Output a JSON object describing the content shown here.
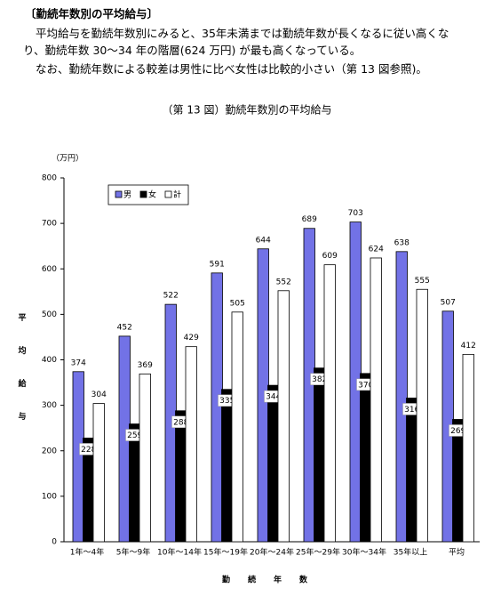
{
  "heading": "〔勤続年数別の平均給与〕",
  "paragraphs": [
    "平均給与を勤続年数別にみると、35年未満までは勤続年数が長くなるに従い高くなり、勤続年数 30～34 年の階層(624 万円) が最も高くなっている。",
    "なお、勤続年数による較差は男性に比べ女性は比較的小さい（第 13 図参照)。"
  ],
  "chart_data": {
    "type": "bar",
    "title": "（第 13 図）勤続年数別の平均給与",
    "unit": "（万円）",
    "y_label": "平均給与",
    "x_label": "勤続年数",
    "categories": [
      "1年～4年",
      "5年～9年",
      "10年～14年",
      "15年～19年",
      "20年～24年",
      "25年～29年",
      "30年～34年",
      "35年以上",
      "平均"
    ],
    "series": [
      {
        "name": "男",
        "color": "#7272e6",
        "values": [
          374,
          452,
          522,
          591,
          644,
          689,
          703,
          638,
          507
        ]
      },
      {
        "name": "女",
        "color": "#000000",
        "values": [
          228,
          259,
          288,
          335,
          344,
          382,
          370,
          316,
          269
        ]
      },
      {
        "name": "計",
        "color": "#ffffff",
        "values": [
          304,
          369,
          429,
          505,
          552,
          609,
          624,
          555,
          412
        ]
      }
    ],
    "ylim": [
      0,
      800
    ],
    "yticks": [
      0,
      100,
      200,
      300,
      400,
      500,
      600,
      700,
      800
    ],
    "legend": "upper left"
  }
}
